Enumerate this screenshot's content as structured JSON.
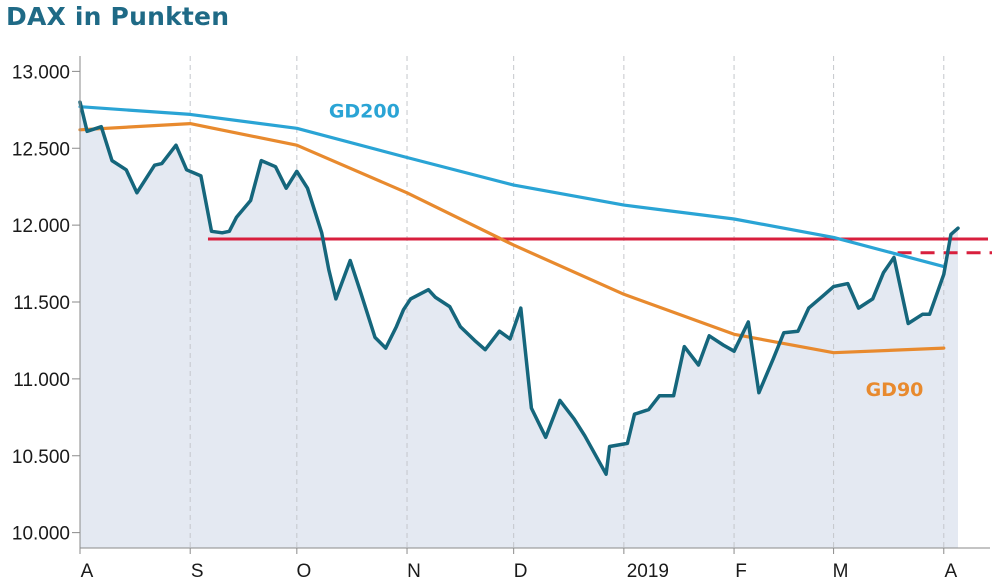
{
  "chart_data": {
    "type": "line",
    "title": "DAX in Punkten",
    "ylim": [
      9900,
      13100
    ],
    "yticks": [
      10000,
      10500,
      11000,
      11500,
      12000,
      12500,
      13000
    ],
    "ytick_labels": [
      "10.000",
      "10.500",
      "11.000",
      "11.500",
      "12.000",
      "12.500",
      "13.000"
    ],
    "x_range": [
      "2018-08-01",
      "2019-04-05"
    ],
    "xticks": [
      {
        "label": "A",
        "date": "2018-08-01"
      },
      {
        "label": "S",
        "date": "2018-09-01"
      },
      {
        "label": "O",
        "date": "2018-10-01"
      },
      {
        "label": "N",
        "date": "2018-11-01"
      },
      {
        "label": "D",
        "date": "2018-12-01"
      },
      {
        "label": "2019",
        "date": "2019-01-01"
      },
      {
        "label": "F",
        "date": "2019-02-01"
      },
      {
        "label": "M",
        "date": "2019-03-01"
      },
      {
        "label": "A",
        "date": "2019-04-01"
      }
    ],
    "grid": "vertical",
    "series": [
      {
        "name": "DAX",
        "color": "#15667c",
        "points": [
          [
            "2018-08-01",
            12800
          ],
          [
            "2018-08-03",
            12610
          ],
          [
            "2018-08-07",
            12640
          ],
          [
            "2018-08-10",
            12420
          ],
          [
            "2018-08-14",
            12360
          ],
          [
            "2018-08-17",
            12210
          ],
          [
            "2018-08-22",
            12390
          ],
          [
            "2018-08-24",
            12400
          ],
          [
            "2018-08-28",
            12520
          ],
          [
            "2018-08-31",
            12360
          ],
          [
            "2018-09-04",
            12320
          ],
          [
            "2018-09-07",
            11960
          ],
          [
            "2018-09-10",
            11950
          ],
          [
            "2018-09-12",
            11960
          ],
          [
            "2018-09-14",
            12050
          ],
          [
            "2018-09-18",
            12160
          ],
          [
            "2018-09-21",
            12420
          ],
          [
            "2018-09-25",
            12380
          ],
          [
            "2018-09-28",
            12240
          ],
          [
            "2018-10-01",
            12350
          ],
          [
            "2018-10-04",
            12240
          ],
          [
            "2018-10-08",
            11950
          ],
          [
            "2018-10-10",
            11710
          ],
          [
            "2018-10-12",
            11520
          ],
          [
            "2018-10-16",
            11770
          ],
          [
            "2018-10-19",
            11560
          ],
          [
            "2018-10-23",
            11270
          ],
          [
            "2018-10-26",
            11200
          ],
          [
            "2018-10-29",
            11340
          ],
          [
            "2018-10-31",
            11450
          ],
          [
            "2018-11-02",
            11520
          ],
          [
            "2018-11-07",
            11580
          ],
          [
            "2018-11-09",
            11530
          ],
          [
            "2018-11-13",
            11470
          ],
          [
            "2018-11-16",
            11340
          ],
          [
            "2018-11-20",
            11250
          ],
          [
            "2018-11-23",
            11190
          ],
          [
            "2018-11-27",
            11310
          ],
          [
            "2018-11-30",
            11260
          ],
          [
            "2018-12-03",
            11460
          ],
          [
            "2018-12-06",
            10810
          ],
          [
            "2018-12-10",
            10620
          ],
          [
            "2018-12-14",
            10860
          ],
          [
            "2018-12-18",
            10740
          ],
          [
            "2018-12-21",
            10630
          ],
          [
            "2018-12-27",
            10380
          ],
          [
            "2018-12-28",
            10560
          ],
          [
            "2019-01-02",
            10580
          ],
          [
            "2019-01-04",
            10770
          ],
          [
            "2019-01-08",
            10800
          ],
          [
            "2019-01-11",
            10890
          ],
          [
            "2019-01-15",
            10890
          ],
          [
            "2019-01-18",
            11210
          ],
          [
            "2019-01-22",
            11090
          ],
          [
            "2019-01-25",
            11280
          ],
          [
            "2019-01-29",
            11220
          ],
          [
            "2019-02-01",
            11180
          ],
          [
            "2019-02-05",
            11370
          ],
          [
            "2019-02-08",
            10910
          ],
          [
            "2019-02-12",
            11130
          ],
          [
            "2019-02-15",
            11300
          ],
          [
            "2019-02-19",
            11310
          ],
          [
            "2019-02-22",
            11460
          ],
          [
            "2019-02-26",
            11540
          ],
          [
            "2019-03-01",
            11600
          ],
          [
            "2019-03-05",
            11620
          ],
          [
            "2019-03-08",
            11460
          ],
          [
            "2019-03-12",
            11520
          ],
          [
            "2019-03-15",
            11690
          ],
          [
            "2019-03-18",
            11790
          ],
          [
            "2019-03-22",
            11360
          ],
          [
            "2019-03-26",
            11420
          ],
          [
            "2019-03-28",
            11420
          ],
          [
            "2019-04-01",
            11680
          ],
          [
            "2019-04-03",
            11940
          ],
          [
            "2019-04-05",
            11980
          ]
        ]
      },
      {
        "name": "GD200",
        "color": "#2aa4d5",
        "points": [
          [
            "2018-08-01",
            12770
          ],
          [
            "2018-09-01",
            12720
          ],
          [
            "2018-10-01",
            12630
          ],
          [
            "2018-11-01",
            12440
          ],
          [
            "2018-12-01",
            12260
          ],
          [
            "2019-01-01",
            12130
          ],
          [
            "2019-02-01",
            12040
          ],
          [
            "2019-03-01",
            11920
          ],
          [
            "2019-04-01",
            11730
          ]
        ]
      },
      {
        "name": "GD90",
        "color": "#e88a2e",
        "points": [
          [
            "2018-08-01",
            12620
          ],
          [
            "2018-09-01",
            12660
          ],
          [
            "2018-10-01",
            12520
          ],
          [
            "2018-11-01",
            12210
          ],
          [
            "2018-12-01",
            11870
          ],
          [
            "2019-01-01",
            11550
          ],
          [
            "2019-02-01",
            11290
          ],
          [
            "2019-03-01",
            11170
          ],
          [
            "2019-04-01",
            11200
          ]
        ]
      }
    ],
    "reference_lines": [
      {
        "value": 11910,
        "from": "2018-09-06",
        "to": "2019-04-05",
        "color": "#d81f3d",
        "style": "solid"
      },
      {
        "value": 11820,
        "from": "2019-03-19",
        "to": "2019-04-05",
        "color": "#d81f3d",
        "style": "dashed"
      }
    ],
    "labels": [
      {
        "text": "GD200",
        "color": "#2aa4d5",
        "date": "2018-10-10",
        "value": 12700
      },
      {
        "text": "GD90",
        "color": "#e88a2e",
        "date": "2019-03-10",
        "value": 10890
      }
    ]
  }
}
